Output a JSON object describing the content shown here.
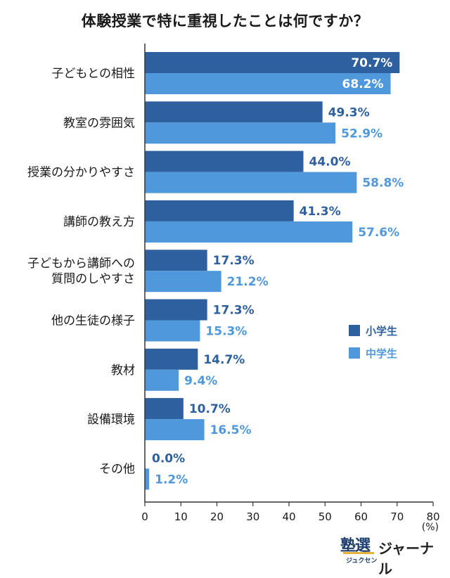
{
  "chart_data": {
    "type": "bar",
    "orientation": "horizontal",
    "title": "体験授業で特に重視したことは何ですか？",
    "unit": "(%)",
    "categories": [
      [
        "子どもとの相性"
      ],
      [
        "教室の雰囲気"
      ],
      [
        "授業の分かりやすさ"
      ],
      [
        "講師の教え方"
      ],
      [
        "子どもから講師への",
        "質問のしやすさ"
      ],
      [
        "他の生徒の様子"
      ],
      [
        "教材"
      ],
      [
        "設備環境"
      ],
      [
        "その他"
      ]
    ],
    "series": [
      {
        "name": "小学生",
        "color": "#2e5f9e",
        "values": [
          70.7,
          49.3,
          44.0,
          41.3,
          17.3,
          17.3,
          14.7,
          10.7,
          0.0
        ],
        "labels": [
          "70.7%",
          "49.3%",
          "44.0%",
          "41.3%",
          "17.3%",
          "17.3%",
          "14.7%",
          "10.7%",
          "0.0%"
        ]
      },
      {
        "name": "中学生",
        "color": "#4f98db",
        "values": [
          68.2,
          52.9,
          58.8,
          57.6,
          21.2,
          15.3,
          9.4,
          16.5,
          1.2
        ],
        "labels": [
          "68.2%",
          "52.9%",
          "58.8%",
          "57.6%",
          "21.2%",
          "15.3%",
          "9.4%",
          "16.5%",
          "1.2%"
        ]
      }
    ],
    "xlim": [
      0,
      80
    ],
    "xticks": [
      0,
      10,
      20,
      30,
      40,
      50,
      60,
      70,
      80
    ],
    "grid": false,
    "legend_position": "right-middle"
  },
  "logo": {
    "mark": "塾選",
    "mark_sub": "ジュクセン",
    "text": "ジャーナル"
  }
}
